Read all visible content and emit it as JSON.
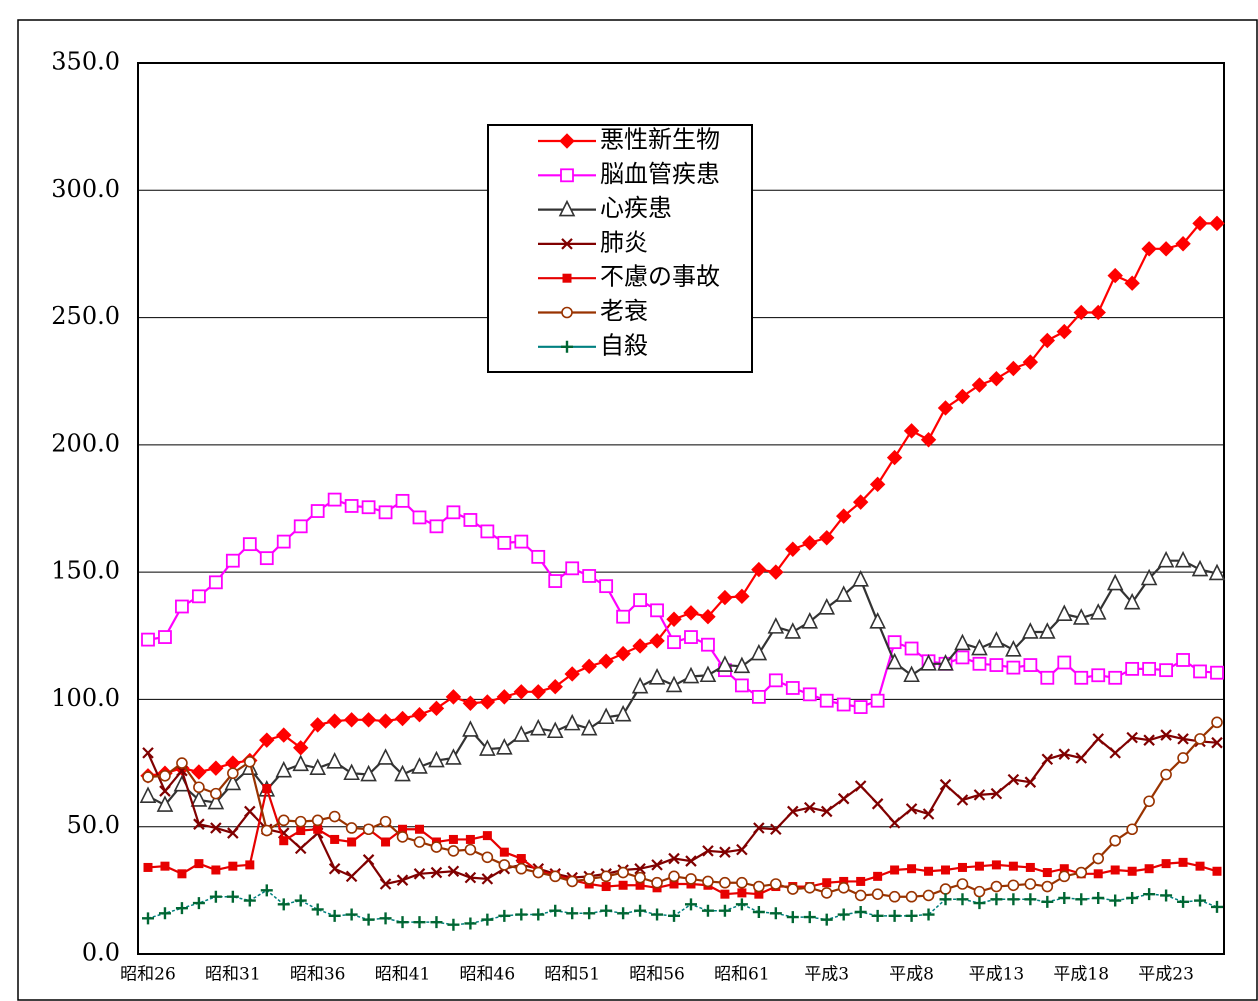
{
  "chart_data": {
    "type": "line",
    "categories": [
      "昭和26",
      null,
      null,
      null,
      null,
      "昭和31",
      null,
      null,
      null,
      null,
      "昭和36",
      null,
      null,
      null,
      null,
      "昭和41",
      null,
      null,
      null,
      null,
      "昭和46",
      null,
      null,
      null,
      null,
      "昭和51",
      null,
      null,
      null,
      null,
      "昭和56",
      null,
      null,
      null,
      null,
      "昭和61",
      null,
      null,
      null,
      null,
      "平成3",
      null,
      null,
      null,
      null,
      "平成8",
      null,
      null,
      null,
      null,
      "平成13",
      null,
      null,
      null,
      null,
      "平成18",
      null,
      null,
      null,
      null,
      "平成23",
      null,
      null,
      null
    ],
    "ylim": [
      0,
      350
    ],
    "yticks": [
      {
        "value": 0,
        "label": "0.0"
      },
      {
        "value": 50,
        "label": "50.0"
      },
      {
        "value": 100,
        "label": "100.0"
      },
      {
        "value": 150,
        "label": "150.0"
      },
      {
        "value": 200,
        "label": "200.0"
      },
      {
        "value": 250,
        "label": "250.0"
      },
      {
        "value": 300,
        "label": "300.0"
      },
      {
        "value": 350,
        "label": "350.0"
      }
    ],
    "grid": true,
    "legend": "top-center",
    "series": [
      {
        "name": "悪性新生物",
        "color": "#ff0000",
        "marker": "diamond",
        "values": [
          70,
          71,
          73,
          71.5,
          73,
          75,
          76,
          84,
          86,
          81,
          90,
          91.5,
          92,
          92,
          91.5,
          92.5,
          94,
          96.5,
          101,
          98.5,
          99,
          101,
          103,
          103,
          105,
          110,
          113,
          115,
          118,
          121,
          123,
          131.5,
          134,
          132.5,
          140,
          140.5,
          151,
          150,
          159,
          161.5,
          163.5,
          172,
          177.5,
          184.5,
          195,
          205.5,
          202,
          214.5,
          219,
          223.5,
          226,
          230,
          232.5,
          241,
          244.5,
          252,
          252,
          266.5,
          263.5,
          277,
          277,
          279,
          287,
          287
        ]
      },
      {
        "name": "脳血管疾患",
        "color": "#ff00ff",
        "marker": "square-open",
        "values": [
          123.5,
          124.5,
          136.5,
          140.5,
          146,
          154.5,
          161,
          155.5,
          162,
          168,
          174,
          178.5,
          176,
          175.5,
          173.5,
          178,
          171.5,
          168,
          173.5,
          170.5,
          166,
          161.5,
          162,
          156,
          146.5,
          151.5,
          148.5,
          144.5,
          132.5,
          139,
          135,
          122.5,
          124.5,
          121.5,
          111.5,
          105.5,
          101,
          107.5,
          104.5,
          102,
          99.5,
          98,
          97,
          99.5,
          122.5,
          120,
          115,
          114,
          116.5,
          114,
          113.5,
          112.5,
          113.5,
          108.5,
          114.5,
          108.5,
          109.5,
          108.5,
          112,
          112,
          111.5,
          115.5,
          111,
          110.5
        ]
      },
      {
        "name": "心疾患",
        "color": "#333333",
        "marker": "triangle-open",
        "values": [
          62,
          58.5,
          66.5,
          60.5,
          59.5,
          67,
          73,
          64.5,
          72,
          74.5,
          73,
          75.5,
          71,
          70.5,
          77,
          70.5,
          73.5,
          76,
          77,
          88,
          80.5,
          81,
          86,
          88.5,
          87.5,
          90.5,
          88.5,
          93,
          94,
          105,
          108.5,
          105.5,
          109,
          109.5,
          113.5,
          113,
          118,
          128.5,
          126.5,
          130.5,
          136,
          141,
          147,
          130.5,
          114.5,
          109.5,
          114,
          114,
          122,
          120,
          123,
          119.5,
          126.5,
          126.5,
          133.5,
          132,
          134,
          145.5,
          138,
          147.5,
          154.5,
          154.5,
          151,
          149.5
        ]
      },
      {
        "name": "肺炎",
        "color": "#800000",
        "marker": "x",
        "values": [
          79,
          64,
          72,
          51,
          49.5,
          47.5,
          56,
          49,
          47.5,
          41.5,
          47.5,
          33.5,
          30.5,
          37,
          27.5,
          29,
          31.5,
          32,
          32.5,
          30,
          29.5,
          33.5,
          35,
          33.5,
          31.5,
          30,
          30.5,
          31.5,
          33,
          33.5,
          35,
          37.5,
          36.5,
          40.5,
          40,
          41,
          49.5,
          49,
          56,
          57.5,
          56,
          61,
          66,
          59,
          51.5,
          57,
          55,
          66.5,
          60.5,
          62.5,
          63,
          68.5,
          67.5,
          76.5,
          78.5,
          77,
          84.5,
          79,
          85,
          84,
          86,
          84.5,
          83.5,
          83
        ]
      },
      {
        "name": "不慮の事故",
        "color": "#e60000",
        "marker": "square-small",
        "values": [
          34,
          34.5,
          31.5,
          35.5,
          33,
          34.5,
          35,
          65,
          44.5,
          48.5,
          49,
          45,
          44,
          49,
          44,
          49,
          49,
          44,
          45,
          45,
          46.5,
          40,
          37.5,
          32.5,
          31,
          29,
          27.5,
          26.5,
          27,
          27,
          26,
          27.5,
          27.5,
          27,
          23.5,
          24,
          23.5,
          26.5,
          26.5,
          26.5,
          28,
          28.5,
          28.5,
          30.5,
          33,
          33.5,
          32.5,
          33,
          34,
          34.5,
          35,
          34.5,
          34,
          32,
          33.5,
          31.5,
          31.5,
          33,
          32.5,
          33.5,
          35.5,
          36,
          34.5,
          32.5
        ]
      },
      {
        "name": "老衰",
        "color": "#993300",
        "marker": "circle-open",
        "values": [
          69.5,
          70,
          75,
          65.5,
          63,
          71,
          75.5,
          48.5,
          52.5,
          52,
          52.5,
          54,
          49.5,
          49,
          52,
          46,
          44,
          42,
          40.5,
          41,
          38,
          35,
          33.5,
          32,
          30.5,
          28.5,
          29.5,
          30.5,
          32,
          30,
          28,
          30.5,
          29.5,
          28.5,
          28,
          28,
          26.5,
          27.5,
          25.5,
          26,
          24,
          26,
          23,
          23.5,
          22.5,
          22.5,
          23,
          25.5,
          27.5,
          24.5,
          26.5,
          27,
          27.5,
          26.5,
          30.5,
          32,
          37.5,
          44.5,
          49,
          60,
          70.5,
          77,
          84.5,
          91
        ]
      },
      {
        "name": "自殺",
        "color": "#006633",
        "marker": "plus",
        "values": [
          14,
          16,
          18,
          20,
          22.5,
          22.5,
          21,
          25,
          19.5,
          21,
          17.5,
          15,
          15.5,
          13.5,
          14,
          12.5,
          12.5,
          12.5,
          11.5,
          12,
          13.5,
          15,
          15.5,
          15.5,
          17,
          16,
          16,
          17,
          16,
          17,
          15.5,
          15,
          19.5,
          17,
          17,
          19.5,
          16.5,
          16,
          14.5,
          14.5,
          13.5,
          15.5,
          16.5,
          15,
          15,
          15,
          15.5,
          21.5,
          21.5,
          20,
          21.5,
          21.5,
          21.5,
          20.5,
          22,
          21.5,
          22,
          21,
          22,
          23.5,
          23,
          20.5,
          21,
          18.5
        ]
      }
    ]
  }
}
